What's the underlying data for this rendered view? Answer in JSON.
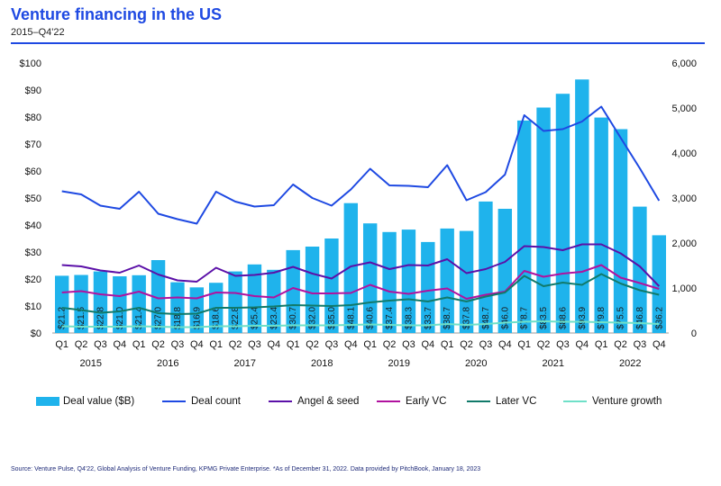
{
  "title": "Venture financing in the US",
  "subtitle": "2015–Q4'22",
  "source": "Source: Venture Pulse, Q4'22, Global Analysis of Venture Funding, KPMG Private Enterprise. *As of December 31, 2022. Data provided by PitchBook, January 18, 2023",
  "legend": [
    {
      "label": "Deal value ($B)",
      "kind": "bar",
      "color": "#1fb3ec"
    },
    {
      "label": "Deal count",
      "kind": "line",
      "color": "#1e49e2"
    },
    {
      "label": "Angel & seed",
      "kind": "line",
      "color": "#5b10a8"
    },
    {
      "label": "Early VC",
      "kind": "line",
      "color": "#b0129f"
    },
    {
      "label": "Later VC",
      "kind": "line",
      "color": "#117a6a"
    },
    {
      "label": "Venture growth",
      "kind": "line",
      "color": "#6fe0c8"
    }
  ],
  "chart_data": {
    "type": "bar",
    "quarters": [
      "Q1",
      "Q2",
      "Q3",
      "Q4",
      "Q1",
      "Q2",
      "Q3",
      "Q4",
      "Q1",
      "Q2",
      "Q3",
      "Q4",
      "Q1",
      "Q2",
      "Q3",
      "Q4",
      "Q1",
      "Q2",
      "Q3",
      "Q4",
      "Q1",
      "Q2",
      "Q3",
      "Q4",
      "Q1",
      "Q2",
      "Q3",
      "Q4",
      "Q1",
      "Q2",
      "Q3",
      "Q4"
    ],
    "years": [
      "2015",
      "2016",
      "2017",
      "2018",
      "2019",
      "2020",
      "2021",
      "2022"
    ],
    "yticks_left": [
      "$0",
      "$10",
      "$20",
      "$30",
      "$40",
      "$50",
      "$60",
      "$70",
      "$80",
      "$90",
      "$100"
    ],
    "yticks_right": [
      "0",
      "1,000",
      "2,000",
      "3,000",
      "4,000",
      "5,000",
      "6,000"
    ],
    "ylim_left": [
      0,
      100
    ],
    "ylim_right": [
      0,
      6000
    ],
    "series": [
      {
        "name": "Deal value ($B)",
        "axis": "left",
        "kind": "bar",
        "color": "#1fb3ec",
        "values": [
          21.2,
          21.5,
          22.8,
          21.0,
          21.4,
          27.0,
          18.8,
          16.9,
          18.6,
          22.8,
          25.4,
          23.4,
          30.7,
          32.0,
          35.0,
          48.1,
          40.6,
          37.4,
          38.3,
          33.7,
          38.7,
          37.8,
          48.7,
          46.0,
          78.7,
          83.5,
          88.6,
          93.9,
          79.8,
          75.5,
          46.8,
          36.2
        ],
        "labels": [
          "$21.2",
          "$21.5",
          "$22.8",
          "$21.0",
          "$21.4",
          "$27.0",
          "$18.8",
          "$16.9",
          "$18.6",
          "$22.8",
          "$25.4",
          "$23.4",
          "$30.7",
          "$32.0",
          "$35.0",
          "$48.1",
          "$40.6",
          "$37.4",
          "$38.3",
          "$33.7",
          "$38.7",
          "$37.8",
          "$48.7",
          "$46.0",
          "$78.7",
          "$83.5",
          "$88.6",
          "$93.9",
          "$79.8",
          "$75.5",
          "$46.8",
          "$36.2"
        ]
      },
      {
        "name": "Deal count",
        "axis": "right",
        "kind": "line",
        "color": "#1e49e2",
        "values": [
          3150,
          3080,
          2830,
          2760,
          3140,
          2650,
          2530,
          2430,
          3140,
          2920,
          2810,
          2840,
          3300,
          3000,
          2830,
          3190,
          3650,
          3280,
          3270,
          3240,
          3730,
          2950,
          3130,
          3520,
          4840,
          4490,
          4530,
          4700,
          5030,
          4340,
          3660,
          2940
        ]
      },
      {
        "name": "Angel & seed",
        "axis": "right",
        "kind": "line",
        "color": "#5b10a8",
        "values": [
          1510,
          1480,
          1390,
          1340,
          1500,
          1300,
          1170,
          1140,
          1450,
          1270,
          1290,
          1340,
          1470,
          1320,
          1210,
          1480,
          1570,
          1420,
          1510,
          1500,
          1640,
          1330,
          1420,
          1580,
          1930,
          1910,
          1840,
          1970,
          1970,
          1770,
          1480,
          1040
        ]
      },
      {
        "name": "Early VC",
        "axis": "right",
        "kind": "line",
        "color": "#b0129f",
        "values": [
          900,
          930,
          860,
          820,
          920,
          770,
          790,
          770,
          900,
          890,
          820,
          790,
          1000,
          880,
          880,
          890,
          1070,
          920,
          870,
          940,
          990,
          760,
          850,
          920,
          1380,
          1250,
          1320,
          1360,
          1510,
          1230,
          1110,
          980
        ]
      },
      {
        "name": "Later VC",
        "axis": "right",
        "kind": "line",
        "color": "#117a6a",
        "values": [
          560,
          510,
          450,
          480,
          560,
          440,
          420,
          430,
          560,
          560,
          570,
          590,
          620,
          610,
          600,
          620,
          680,
          720,
          750,
          700,
          790,
          700,
          810,
          900,
          1270,
          1040,
          1120,
          1070,
          1310,
          1100,
          950,
          850
        ]
      },
      {
        "name": "Venture growth",
        "axis": "right",
        "kind": "line",
        "color": "#6fe0c8",
        "values": [
          150,
          140,
          140,
          140,
          150,
          140,
          130,
          130,
          150,
          150,
          160,
          160,
          170,
          170,
          170,
          180,
          190,
          180,
          170,
          170,
          200,
          180,
          200,
          230,
          250,
          260,
          250,
          250,
          240,
          230,
          220,
          200
        ]
      }
    ]
  }
}
